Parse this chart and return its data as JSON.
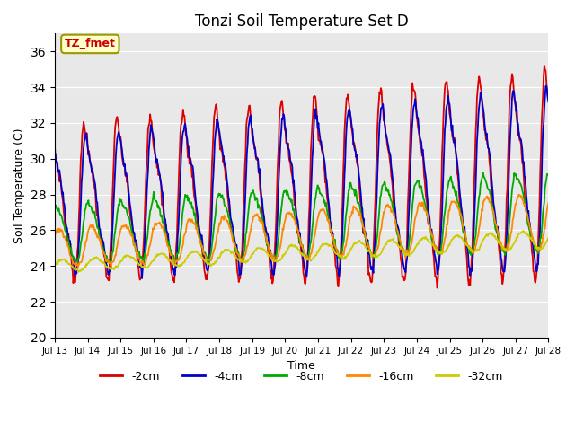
{
  "title": "Tonzi Soil Temperature Set D",
  "xlabel": "Time",
  "ylabel": "Soil Temperature (C)",
  "ylim": [
    20,
    37
  ],
  "yticks": [
    20,
    22,
    24,
    26,
    28,
    30,
    32,
    34,
    36
  ],
  "annotation": "TZ_fmet",
  "bg_color": "#e8e8e8",
  "series_colors": [
    "#dd0000",
    "#0000cc",
    "#00aa00",
    "#ff8800",
    "#cccc00"
  ],
  "series_labels": [
    "-2cm",
    "-4cm",
    "-8cm",
    "-16cm",
    "-32cm"
  ],
  "x_start_day": 13,
  "x_end_day": 28,
  "x_tick_days": [
    13,
    14,
    15,
    16,
    17,
    18,
    19,
    20,
    21,
    22,
    23,
    24,
    25,
    26,
    27,
    28
  ],
  "points_per_day": 48
}
